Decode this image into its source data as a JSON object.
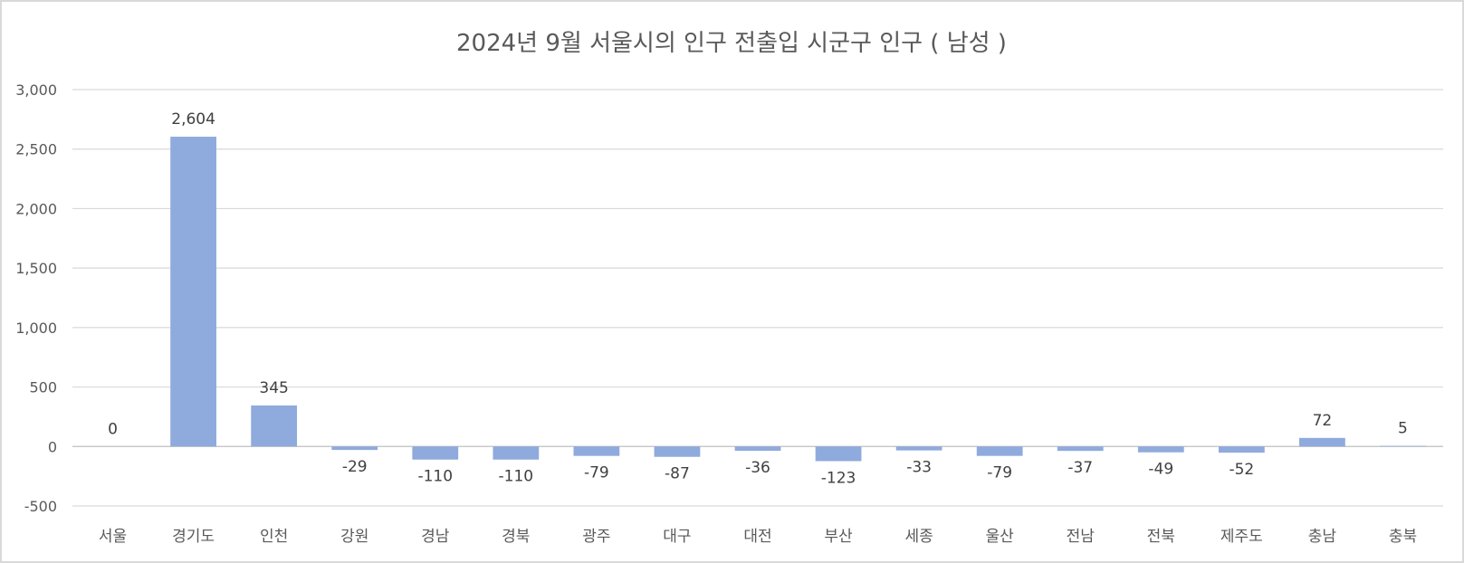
{
  "chart_data": {
    "type": "bar",
    "title": "2024년 9월 서울시의 인구 전출입 시군구 인구 ( 남성 )",
    "xlabel": "",
    "ylabel": "",
    "ylim": [
      -500,
      3000
    ],
    "yticks": [
      3000,
      2500,
      2000,
      1500,
      1000,
      500,
      0,
      -500
    ],
    "ytick_labels": [
      "3,000",
      "2,500",
      "2,000",
      "1,500",
      "1,000",
      "500",
      "0",
      "-500"
    ],
    "categories": [
      "서울",
      "경기도",
      "인천",
      "강원",
      "경남",
      "경북",
      "광주",
      "대구",
      "대전",
      "부산",
      "세종",
      "울산",
      "전남",
      "전북",
      "제주도",
      "충남",
      "충북"
    ],
    "values": [
      0,
      2604,
      345,
      -29,
      -110,
      -110,
      -79,
      -87,
      -36,
      -123,
      -33,
      -79,
      -37,
      -49,
      -52,
      72,
      5
    ],
    "data_labels": [
      "0",
      "2,604",
      "345",
      "-29",
      "-110",
      "-110",
      "-79",
      "-87",
      "-36",
      "-123",
      "-33",
      "-79",
      "-37",
      "-49",
      "-52",
      "72",
      "5"
    ],
    "grid": true,
    "legend": "none",
    "bar_color": "#8faadc"
  }
}
